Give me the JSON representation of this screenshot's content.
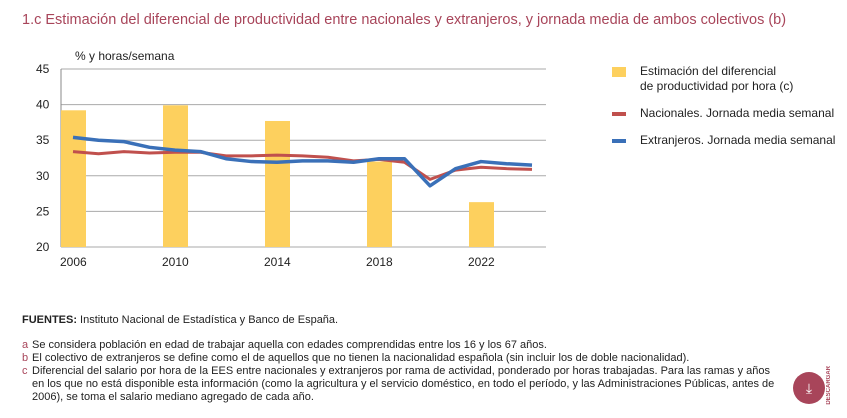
{
  "title": "1.c  Estimación del diferencial de productividad entre nacionales y extranjeros, y jornada media de ambos colectivos (b)",
  "chart_data": {
    "type": "bar+line",
    "ylabel": "% y horas/semana",
    "ylim": [
      20,
      45
    ],
    "yticks": [
      20,
      25,
      30,
      35,
      40,
      45
    ],
    "xticks": [
      2006,
      2010,
      2014,
      2018,
      2022
    ],
    "x": [
      2006,
      2007,
      2008,
      2009,
      2010,
      2011,
      2012,
      2013,
      2014,
      2015,
      2016,
      2017,
      2018,
      2019,
      2020,
      2021,
      2022,
      2023,
      2024
    ],
    "bars": {
      "name_lines": [
        "Estimación del diferencial",
        "de productividad por hora (c)"
      ],
      "color": "#fdd05e",
      "x": [
        2006,
        2010,
        2014,
        2018,
        2022
      ],
      "values": [
        39.2,
        39.9,
        37.7,
        32.0,
        26.3
      ]
    },
    "series": [
      {
        "name": "Nacionales. Jornada media semanal",
        "color": "#c0504d",
        "values": [
          33.4,
          33.1,
          33.4,
          33.2,
          33.3,
          33.3,
          32.8,
          32.8,
          32.9,
          32.8,
          32.6,
          32.1,
          32.3,
          31.9,
          29.5,
          30.8,
          31.2,
          31.0,
          30.9
        ]
      },
      {
        "name": "Extranjeros. Jornada media semanal",
        "color": "#3a70b8",
        "values": [
          35.4,
          35.0,
          34.8,
          34.0,
          33.6,
          33.4,
          32.4,
          32.0,
          31.9,
          32.1,
          32.1,
          31.9,
          32.4,
          32.4,
          28.6,
          31.0,
          32.0,
          31.7,
          31.5
        ]
      }
    ],
    "legend": "right"
  },
  "sources": {
    "label": "FUENTES:",
    "text": " Instituto Nacional de Estadística y Banco de España."
  },
  "notes": [
    {
      "k": "a",
      "t": "Se considera población en edad de trabajar aquella con edades comprendidas entre los 16 y los 67 años."
    },
    {
      "k": "b",
      "t": "El colectivo de extranjeros se define como el de aquellos que no tienen la nacionalidad española (sin incluir los de doble nacionalidad)."
    },
    {
      "k": "c",
      "t": "Diferencial del salario por hora de la EES entre nacionales y extranjeros por rama de actividad, ponderado por horas trabajadas. Para las ramas y años en los que no está disponible esta información (como la agricultura y el servicio doméstico, en todo el período, y las Administraciones Públicas, antes de 2006), se toma el salario mediano agregado de cada año."
    }
  ],
  "download": "DESCARGAR"
}
